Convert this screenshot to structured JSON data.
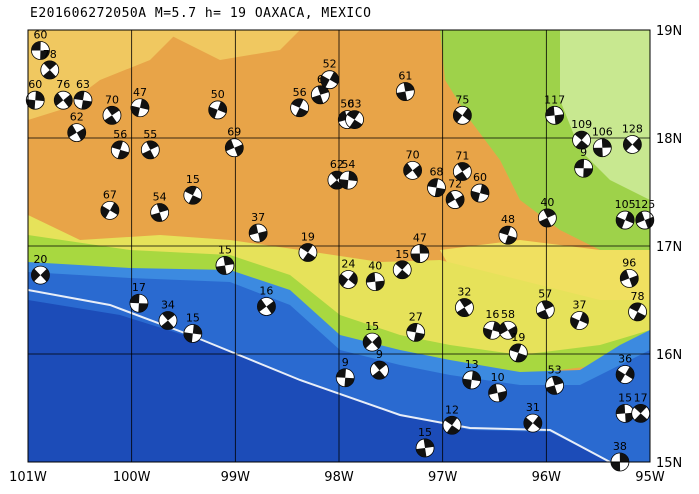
{
  "chart_data": {
    "type": "focal-mechanism-map",
    "title": "E201606272050A M=5.7 h= 19 OAXACA, MEXICO",
    "xlim": [
      -101,
      -95
    ],
    "ylim": [
      15,
      19
    ],
    "xticks": [
      {
        "value": -101,
        "label": "101W"
      },
      {
        "value": -100,
        "label": "100W"
      },
      {
        "value": -99,
        "label": "99W"
      },
      {
        "value": -98,
        "label": "98W"
      },
      {
        "value": -97,
        "label": "97W"
      },
      {
        "value": -96,
        "label": "96W"
      },
      {
        "value": -95,
        "label": "95W"
      }
    ],
    "yticks": [
      {
        "value": 15,
        "label": "15N"
      },
      {
        "value": 16,
        "label": "16N"
      },
      {
        "value": 17,
        "label": "17N"
      },
      {
        "value": 18,
        "label": "18N"
      },
      {
        "value": 19,
        "label": "19N"
      }
    ],
    "grid": true,
    "events": [
      {
        "lon": -100.88,
        "lat": 18.81,
        "depth": 60
      },
      {
        "lon": -100.79,
        "lat": 18.63,
        "depth": 78
      },
      {
        "lon": -100.93,
        "lat": 18.35,
        "depth": 60
      },
      {
        "lon": -100.66,
        "lat": 18.35,
        "depth": 76
      },
      {
        "lon": -100.47,
        "lat": 18.35,
        "depth": 63
      },
      {
        "lon": -100.19,
        "lat": 18.21,
        "depth": 70
      },
      {
        "lon": -99.92,
        "lat": 18.28,
        "depth": 47
      },
      {
        "lon": -100.53,
        "lat": 18.05,
        "depth": 62
      },
      {
        "lon": -100.11,
        "lat": 17.89,
        "depth": 56
      },
      {
        "lon": -99.82,
        "lat": 17.89,
        "depth": 55
      },
      {
        "lon": -99.17,
        "lat": 18.26,
        "depth": 50
      },
      {
        "lon": -99.01,
        "lat": 17.91,
        "depth": 69
      },
      {
        "lon": -98.38,
        "lat": 18.28,
        "depth": 56
      },
      {
        "lon": -98.18,
        "lat": 18.4,
        "depth": 6
      },
      {
        "lon": -98.09,
        "lat": 18.54,
        "depth": 52
      },
      {
        "lon": -97.92,
        "lat": 18.17,
        "depth": 50
      },
      {
        "lon": -97.85,
        "lat": 18.17,
        "depth": 63
      },
      {
        "lon": -97.36,
        "lat": 18.43,
        "depth": 61
      },
      {
        "lon": -96.81,
        "lat": 18.21,
        "depth": 75
      },
      {
        "lon": -95.92,
        "lat": 18.21,
        "depth": 117
      },
      {
        "lon": -95.66,
        "lat": 17.98,
        "depth": 109
      },
      {
        "lon": -95.46,
        "lat": 17.91,
        "depth": 106
      },
      {
        "lon": -95.17,
        "lat": 17.94,
        "depth": 128
      },
      {
        "lon": -95.64,
        "lat": 17.72,
        "depth": 9
      },
      {
        "lon": -98.02,
        "lat": 17.61,
        "depth": 62
      },
      {
        "lon": -97.91,
        "lat": 17.61,
        "depth": 54
      },
      {
        "lon": -97.29,
        "lat": 17.7,
        "depth": 70
      },
      {
        "lon": -97.06,
        "lat": 17.54,
        "depth": 68
      },
      {
        "lon": -96.81,
        "lat": 17.69,
        "depth": 71
      },
      {
        "lon": -96.64,
        "lat": 17.49,
        "depth": 60
      },
      {
        "lon": -96.88,
        "lat": 17.43,
        "depth": 72
      },
      {
        "lon": -96.37,
        "lat": 17.1,
        "depth": 48
      },
      {
        "lon": -95.99,
        "lat": 17.26,
        "depth": 40
      },
      {
        "lon": -95.24,
        "lat": 17.24,
        "depth": 105
      },
      {
        "lon": -95.05,
        "lat": 17.24,
        "depth": 125
      },
      {
        "lon": -99.41,
        "lat": 17.47,
        "depth": 15
      },
      {
        "lon": -99.73,
        "lat": 17.31,
        "depth": 54
      },
      {
        "lon": -100.21,
        "lat": 17.33,
        "depth": 67
      },
      {
        "lon": -98.78,
        "lat": 17.12,
        "depth": 37
      },
      {
        "lon": -98.3,
        "lat": 16.94,
        "depth": 19
      },
      {
        "lon": -99.1,
        "lat": 16.82,
        "depth": 15
      },
      {
        "lon": -97.91,
        "lat": 16.69,
        "depth": 24
      },
      {
        "lon": -97.65,
        "lat": 16.67,
        "depth": 40
      },
      {
        "lon": -97.39,
        "lat": 16.78,
        "depth": 15
      },
      {
        "lon": -97.22,
        "lat": 16.93,
        "depth": 47
      },
      {
        "lon": -100.88,
        "lat": 16.73,
        "depth": 20
      },
      {
        "lon": -99.93,
        "lat": 16.47,
        "depth": 17
      },
      {
        "lon": -99.65,
        "lat": 16.31,
        "depth": 34
      },
      {
        "lon": -99.41,
        "lat": 16.19,
        "depth": 15
      },
      {
        "lon": -98.7,
        "lat": 16.44,
        "depth": 16
      },
      {
        "lon": -97.26,
        "lat": 16.2,
        "depth": 27
      },
      {
        "lon": -96.79,
        "lat": 16.43,
        "depth": 32
      },
      {
        "lon": -96.52,
        "lat": 16.22,
        "depth": 16
      },
      {
        "lon": -96.37,
        "lat": 16.22,
        "depth": 58
      },
      {
        "lon": -96.27,
        "lat": 16.01,
        "depth": 19
      },
      {
        "lon": -96.01,
        "lat": 16.41,
        "depth": 57
      },
      {
        "lon": -95.68,
        "lat": 16.31,
        "depth": 37
      },
      {
        "lon": -95.2,
        "lat": 16.7,
        "depth": 96
      },
      {
        "lon": -95.12,
        "lat": 16.39,
        "depth": 78
      },
      {
        "lon": -95.92,
        "lat": 15.71,
        "depth": 53
      },
      {
        "lon": -95.24,
        "lat": 15.81,
        "depth": 36
      },
      {
        "lon": -96.47,
        "lat": 15.64,
        "depth": 10
      },
      {
        "lon": -96.91,
        "lat": 15.34,
        "depth": 12
      },
      {
        "lon": -97.17,
        "lat": 15.13,
        "depth": 15
      },
      {
        "lon": -96.13,
        "lat": 15.36,
        "depth": 31
      },
      {
        "lon": -95.24,
        "lat": 15.45,
        "depth": 15
      },
      {
        "lon": -95.09,
        "lat": 15.45,
        "depth": 17
      },
      {
        "lon": -95.29,
        "lat": 15.0,
        "depth": 38
      },
      {
        "lon": -97.68,
        "lat": 16.11,
        "depth": 15
      },
      {
        "lon": -97.94,
        "lat": 15.78,
        "depth": 9
      },
      {
        "lon": -97.61,
        "lat": 15.85,
        "depth": 9
      },
      {
        "lon": -96.72,
        "lat": 15.76,
        "depth": 13
      }
    ]
  }
}
